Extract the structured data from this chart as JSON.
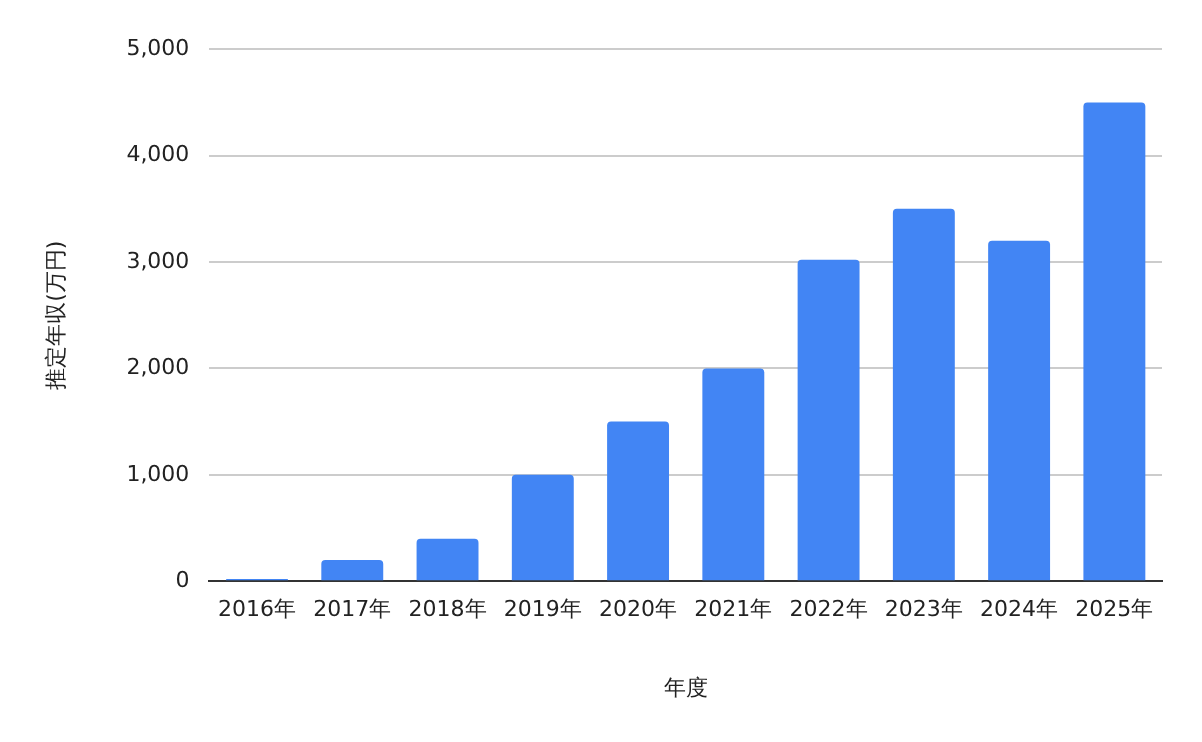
{
  "chart_data": {
    "type": "bar",
    "xlabel": "年度",
    "ylabel": "推定年収(万円)",
    "categories": [
      "2016年",
      "2017年",
      "2018年",
      "2019年",
      "2020年",
      "2021年",
      "2022年",
      "2023年",
      "2024年",
      "2025年"
    ],
    "series": [
      {
        "color": "#4285f4",
        "values": [
          20,
          200,
          400,
          1000,
          1500,
          2000,
          3020,
          3500,
          3200,
          4500
        ]
      }
    ],
    "ylim": [
      0,
      5000
    ],
    "yticks": [
      {
        "value": 0,
        "label": "0"
      },
      {
        "value": 1000,
        "label": "1,000"
      },
      {
        "value": 2000,
        "label": "2,000"
      },
      {
        "value": 3000,
        "label": "3,000"
      },
      {
        "value": 4000,
        "label": "4,000"
      },
      {
        "value": 5000,
        "label": "5,000"
      }
    ],
    "grid": "y",
    "legend": false
  }
}
